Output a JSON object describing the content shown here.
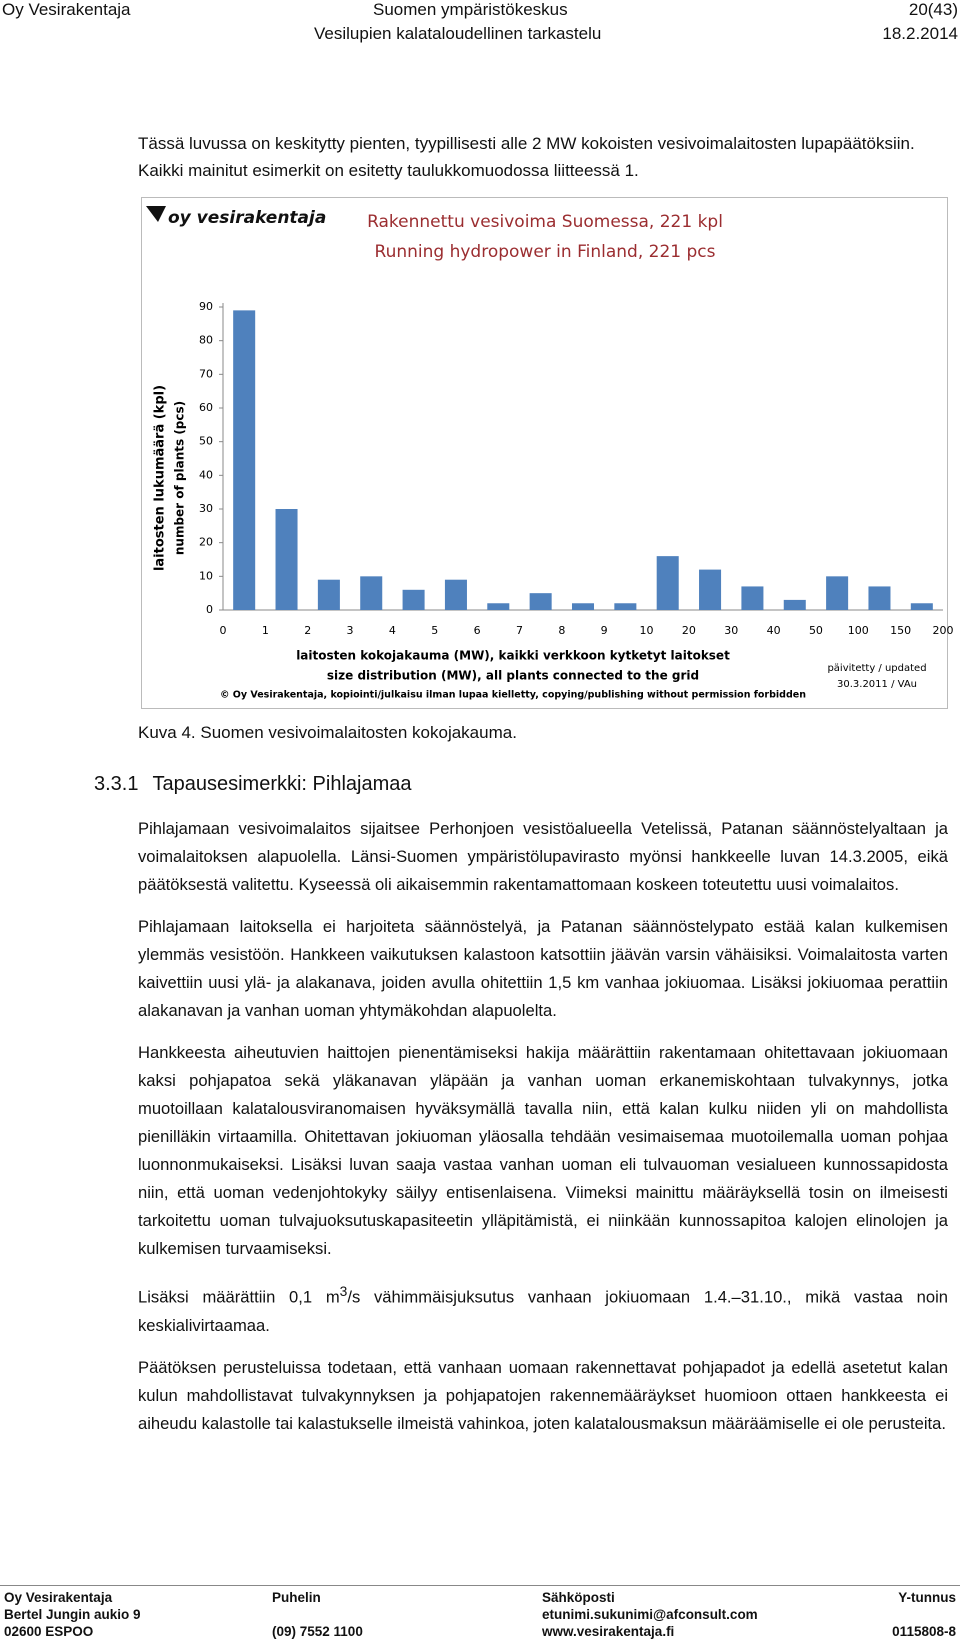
{
  "header": {
    "company": "Oy Vesirakentaja",
    "client": "Suomen ympäristökeskus",
    "page": "20(43)",
    "report": "Vesilupien kalataloudellinen tarkastelu",
    "date": "18.2.2014"
  },
  "intro": "Tässä luvussa on keskitytty pienten, tyypillisesti alle 2 MW kokoisten vesivoimalaitosten lupapäätöksiin. Kaikki mainitut esimerkit on esitetty taulukkomuodossa liitteessä 1.",
  "chart_data": {
    "type": "histogram",
    "logo": "oy vesirakentaja",
    "title": [
      "Rakennettu vesivoima Suomessa, 221 kpl",
      "Running hydropower in Finland, 221 pcs"
    ],
    "ylabel": [
      "laitosten lukumäärä (kpl)",
      "number of plants (pcs)"
    ],
    "xlabel": [
      "laitosten kokojakauma (MW), kaikki verkkoon kytketyt laitokset",
      "size distribution (MW), all plants connected to the grid"
    ],
    "updated": [
      "päivitetty / updated",
      "30.3.2011 / VAu"
    ],
    "copyright": "© Oy Vesirakentaja, kopiointi/julkaisu ilman lupaa kielletty, copying/publishing without permission forbidden",
    "bins": [
      "0",
      "1",
      "2",
      "3",
      "4",
      "5",
      "6",
      "7",
      "8",
      "9",
      "10",
      "20",
      "30",
      "40",
      "50",
      "100",
      "150",
      "200"
    ],
    "values": [
      89,
      30,
      9,
      10,
      6,
      9,
      2,
      5,
      2,
      2,
      16,
      12,
      7,
      3,
      10,
      7,
      2
    ],
    "color": "#4f81bd",
    "ylim": [
      0,
      90
    ],
    "yticks": [
      0,
      10,
      20,
      30,
      40,
      50,
      60,
      70,
      80,
      90
    ],
    "grid": false
  },
  "caption": "Kuva 4. Suomen vesivoimalaitosten kokojakauma.",
  "section": {
    "number": "3.3.1",
    "title": "Tapausesimerkki: Pihlajamaa"
  },
  "paragraphs": [
    "Pihlajamaan vesivoimalaitos sijaitsee Perhonjoen vesistöalueella Vetelissä, Patanan säännöstelyaltaan ja voimalaitoksen alapuolella. Länsi-Suomen ympäristölupavirasto myönsi hankkeelle luvan 14.3.2005, eikä päätöksestä valitettu. Kyseessä oli aikaisemmin rakentamattomaan koskeen toteutettu uusi voimalaitos.",
    "Pihlajamaan laitoksella ei harjoiteta säännöstelyä, ja Patanan säännöstelypato estää kalan kulkemisen ylemmäs vesistöön. Hankkeen vaikutuksen kalastoon katsottiin jäävän varsin vähäisiksi. Voimalaitosta varten kaivettiin uusi ylä- ja alakanava, joiden avulla ohitettiin 1,5 km vanhaa jokiuomaa. Lisäksi jokiuomaa perattiin alakanavan ja vanhan uoman yhtymäkohdan alapuolelta.",
    "Hankkeesta aiheutuvien haittojen pienentämiseksi hakija määrättiin rakentamaan ohitettavaan jokiuomaan kaksi pohjapatoa sekä yläkanavan yläpään ja vanhan uoman erkanemiskohtaan tulvakynnys, jotka muotoillaan kalatalousviranomaisen hyväksymällä tavalla niin, että kalan kulku niiden yli on mahdollista pienilläkin virtaamilla. Ohitettavan jokiuoman yläosalla tehdään vesimaisemaa muotoilemalla uoman pohjaa luonnonmukaiseksi. Lisäksi luvan saaja vastaa vanhan uoman eli tulvauoman vesialueen kunnossapidosta niin, että uoman vedenjohtokyky säilyy entisenlaisena. Viimeksi mainittu määräyksellä tosin on ilmeisesti tarkoitettu uoman tulvajuoksutuskapasiteetin ylläpitämistä, ei niinkään kunnossapitoa kalojen elinolojen ja kulkemisen turvaamiseksi.",
    {
      "before": "Lisäksi määrättiin 0,1 m",
      "sup": "3",
      "after": "/s vähimmäisjuksutus vanhaan jokiuomaan 1.4.–31.10., mikä vastaa noin keskialivirtaamaa."
    },
    "Päätöksen perusteluissa todetaan, että vanhaan uomaan rakennettavat pohjapadot ja edellä asetetut kalan kulun mahdollistavat tulvakynnyksen ja pohjapatojen rakennemääräykset huomioon ottaen hankkeesta ei aiheudu kalastolle tai kalastukselle ilmeistä vahinkoa, joten kalatalousmaksun määräämiselle ei ole perusteita."
  ],
  "footer": [
    [
      "Oy Vesirakentaja",
      "Bertel Jungin aukio 9",
      "02600 ESPOO"
    ],
    [
      "Puhelin",
      "(09) 7552 1100"
    ],
    [
      "Sähköposti",
      "etunimi.sukunimi@afconsult.com",
      "www.vesirakentaja.fi"
    ],
    [
      "Y-tunnus",
      "0115808-8"
    ]
  ]
}
